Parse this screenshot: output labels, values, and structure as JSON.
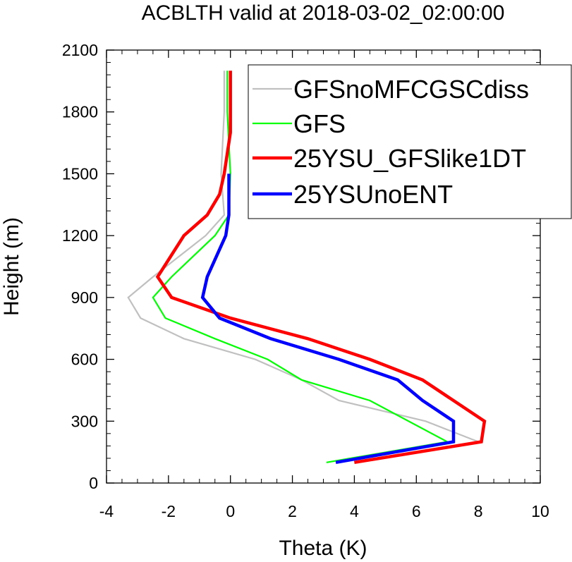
{
  "chart_data": {
    "type": "line",
    "title": "ACBLTH valid at 2018-03-02_02:00:00",
    "xlabel": "Theta (K)",
    "ylabel": "Height (m)",
    "xlim": [
      -4,
      10
    ],
    "ylim": [
      0,
      2100
    ],
    "xticks": [
      "-4",
      "-2",
      "0",
      "2",
      "4",
      "6",
      "8",
      "10"
    ],
    "yticks": [
      "0",
      "300",
      "600",
      "900",
      "1200",
      "1500",
      "1800",
      "2100"
    ],
    "legend_position": "top-right",
    "series": [
      {
        "name": "GFSnoMFCGSCdiss",
        "color": "#c0c0c0",
        "width": "thin",
        "x": [
          4.0,
          8.0,
          6.3,
          3.5,
          2.3,
          0.8,
          -1.5,
          -2.9,
          -3.3,
          -2.5,
          -0.8,
          -0.2,
          -0.3,
          -0.2,
          -0.2
        ],
        "y": [
          100,
          200,
          300,
          400,
          500,
          600,
          700,
          800,
          900,
          1000,
          1200,
          1300,
          1500,
          1800,
          2000
        ]
      },
      {
        "name": "GFS",
        "color": "#00ff00",
        "width": "thin",
        "x": [
          3.1,
          7.0,
          4.5,
          2.3,
          1.2,
          -0.5,
          -2.1,
          -2.5,
          -1.9,
          -0.5,
          -0.05,
          0.0,
          -0.1,
          -0.1
        ],
        "y": [
          100,
          200,
          400,
          500,
          600,
          700,
          800,
          900,
          1000,
          1200,
          1300,
          1500,
          1800,
          2000
        ]
      },
      {
        "name": "25YSU_GFSlike1DT",
        "color": "#ff0000",
        "width": "thick",
        "x": [
          4.0,
          8.1,
          8.2,
          6.2,
          4.5,
          2.5,
          0.0,
          -1.9,
          -2.35,
          -1.5,
          -0.75,
          -0.35,
          -0.2,
          0.0,
          0.0
        ],
        "y": [
          100,
          200,
          300,
          500,
          600,
          700,
          800,
          900,
          1000,
          1200,
          1300,
          1400,
          1500,
          1700,
          2000
        ]
      },
      {
        "name": "25YSUnoENT",
        "color": "#0000ff",
        "width": "thick",
        "x": [
          3.4,
          7.2,
          7.2,
          6.2,
          5.4,
          3.5,
          1.3,
          -0.35,
          -0.9,
          -0.75,
          -0.15,
          -0.05,
          -0.05
        ],
        "y": [
          100,
          200,
          300,
          400,
          500,
          600,
          700,
          800,
          900,
          1000,
          1200,
          1300,
          1500
        ]
      }
    ]
  }
}
